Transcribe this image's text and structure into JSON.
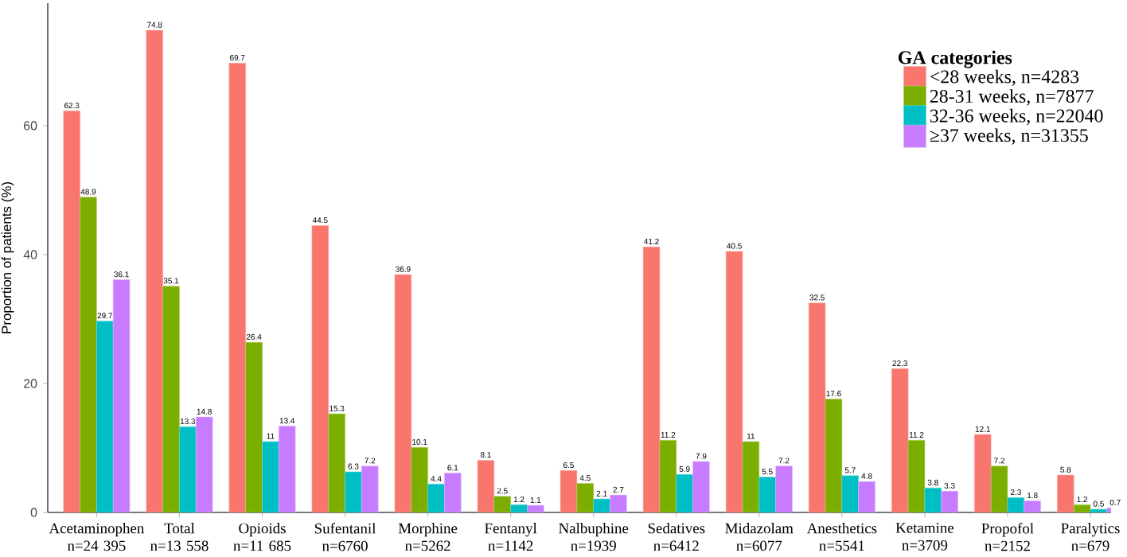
{
  "chart_data": {
    "type": "bar",
    "ylabel": "Proportion of patients (%)",
    "legend_title": "GA categories",
    "categories": [
      "Acetaminophen\nn=24 395",
      "Total\nn=13 558",
      "Opioids\nn=11 685",
      "Sufentanil\nn=6760",
      "Morphine\nn=5262",
      "Fentanyl\nn=1142",
      "Nalbuphine\nn=1939",
      "Sedatives\nn=6412",
      "Midazolam\nn=6077",
      "Anesthetics\nn=5541",
      "Ketamine\nn=3709",
      "Propofol\nn=2152",
      "Paralytics\nn=679"
    ],
    "series": [
      {
        "name": "<28 weeks,  n=4283",
        "color": "#f8766d",
        "values": [
          62.3,
          74.8,
          69.7,
          44.5,
          36.9,
          8.1,
          6.5,
          41.2,
          40.5,
          32.5,
          22.3,
          12.1,
          5.8
        ]
      },
      {
        "name": "28-31 weeks,  n=7877",
        "color": "#7cae00",
        "values": [
          48.9,
          35.1,
          26.4,
          15.3,
          10.1,
          2.5,
          4.5,
          11.2,
          11,
          17.6,
          11.2,
          7.2,
          1.2
        ]
      },
      {
        "name": "32-36 weeks,  n=22040",
        "color": "#00bfc4",
        "values": [
          29.7,
          13.3,
          11,
          6.3,
          4.4,
          1.2,
          2.1,
          5.9,
          5.5,
          5.7,
          3.8,
          2.3,
          0.5
        ]
      },
      {
        "name": "≥37 weeks,  n=31355",
        "color": "#c77cff",
        "values": [
          36.1,
          14.8,
          13.4,
          7.2,
          6.1,
          1.1,
          2.7,
          7.9,
          7.2,
          4.8,
          3.3,
          1.8,
          0.7
        ]
      }
    ],
    "ylim": [
      0,
      79
    ],
    "yticks": [
      0,
      20,
      40,
      60
    ],
    "grid": false,
    "legend": "top right",
    "data_labels": true
  }
}
